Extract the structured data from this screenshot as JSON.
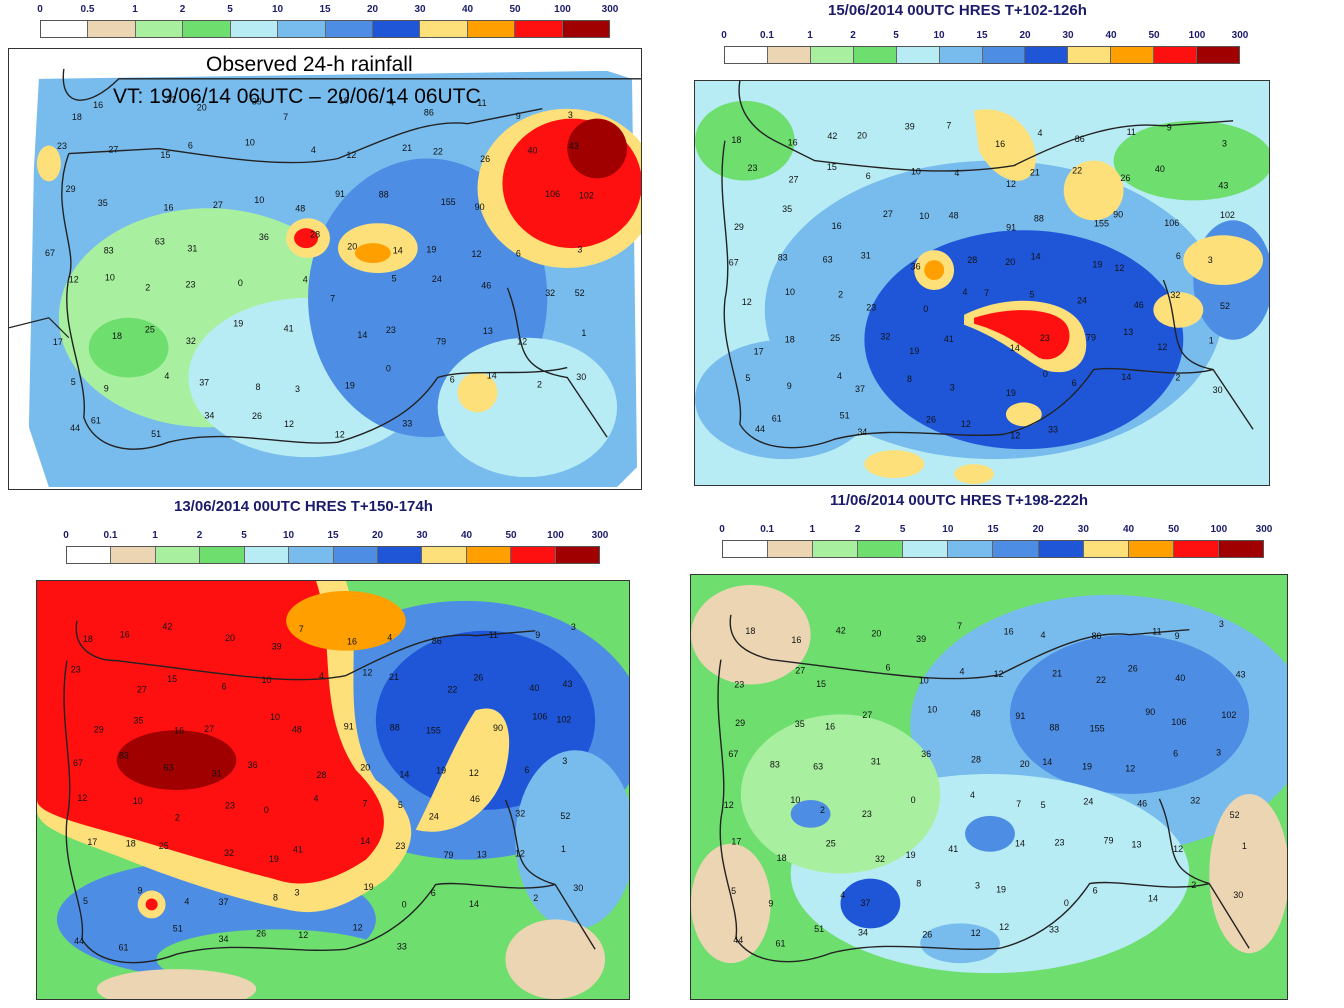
{
  "legends": {
    "observed": {
      "ticks": [
        "0",
        "0.5",
        "1",
        "2",
        "5",
        "10",
        "15",
        "20",
        "30",
        "40",
        "50",
        "100",
        "300"
      ]
    },
    "forecast": {
      "ticks": [
        "0",
        "0.1",
        "1",
        "2",
        "5",
        "10",
        "15",
        "20",
        "30",
        "40",
        "50",
        "100",
        "300"
      ]
    }
  },
  "colors": [
    "#ffffff",
    "#ecd5b3",
    "#a8f0a0",
    "#6ede6e",
    "#b8ecf4",
    "#78bcee",
    "#4d8ee4",
    "#1f56d8",
    "#fde07a",
    "#ffa000",
    "#ff1010",
    "#a00000"
  ],
  "panels": {
    "observed": {
      "title_line1": "Observed 24-h rainfall",
      "title_line2": "VT: 19/06/14 06UTC – 20/06/14 06UTC"
    },
    "forecast_1": {
      "title": "15/06/2014 00UTC HRES T+102-126h"
    },
    "forecast_2": {
      "title": "13/06/2014 00UTC HRES T+150-174h"
    },
    "forecast_3": {
      "title": "11/06/2014 00UTC HRES T+198-222h"
    }
  },
  "stations": [
    "18",
    "16",
    "42",
    "20",
    "39",
    "7",
    "16",
    "4",
    "86",
    "11",
    "9",
    "3",
    "23",
    "27",
    "15",
    "6",
    "10",
    "4",
    "12",
    "21",
    "22",
    "26",
    "40",
    "43",
    "29",
    "35",
    "16",
    "27",
    "10",
    "48",
    "91",
    "88",
    "155",
    "90",
    "106",
    "102",
    "67",
    "83",
    "63",
    "31",
    "36",
    "28",
    "20",
    "14",
    "19",
    "12",
    "6",
    "3",
    "12",
    "10",
    "2",
    "23",
    "0",
    "4",
    "7",
    "5",
    "24",
    "46",
    "32",
    "52",
    "17",
    "18",
    "25",
    "32",
    "19",
    "41",
    "14",
    "23",
    "79",
    "13",
    "12",
    "1",
    "5",
    "9",
    "4",
    "37",
    "8",
    "3",
    "19",
    "0",
    "6",
    "14",
    "2",
    "30",
    "44",
    "61",
    "51",
    "34",
    "26",
    "12",
    "12",
    "33"
  ]
}
